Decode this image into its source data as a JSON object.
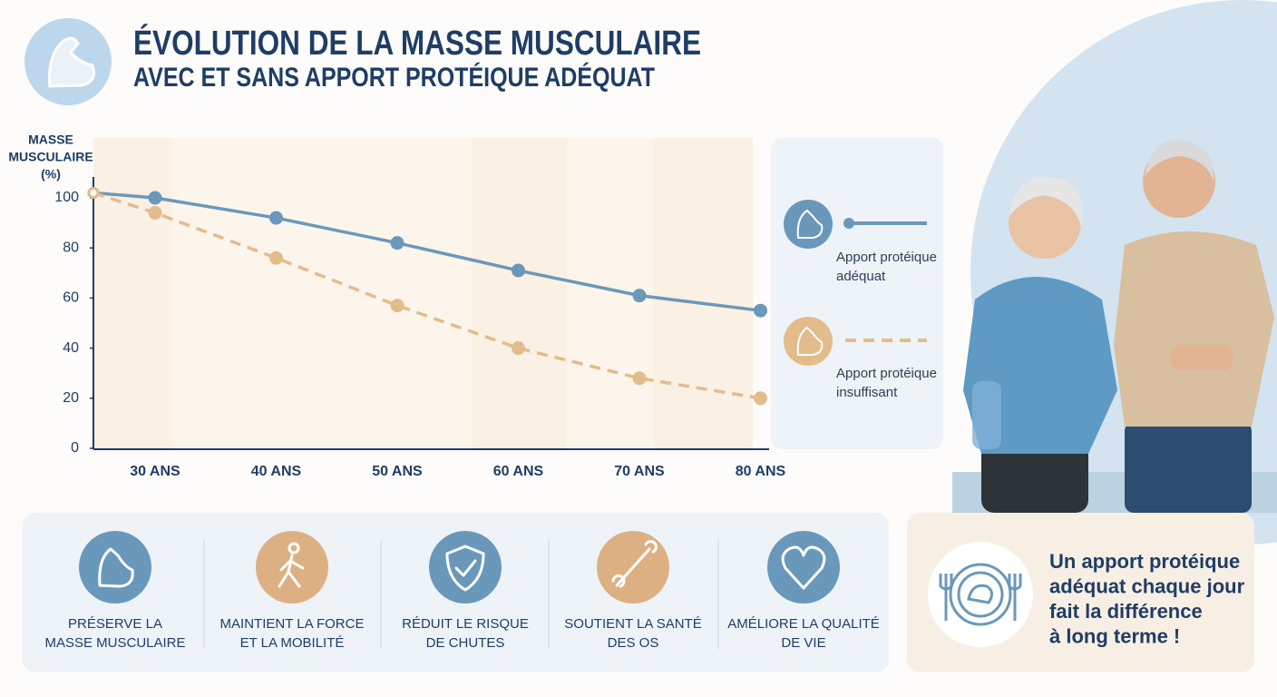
{
  "header": {
    "title": "ÉVOLUTION DE LA MASSE MUSCULAIRE",
    "subtitle": "AVEC ET SANS APPORT PROTÉIQUE ADÉQUAT"
  },
  "chart_data": {
    "type": "line",
    "y_label": [
      "MASSE",
      "MUSCULAIRE",
      "(%)"
    ],
    "categories": [
      null,
      "30 ANS",
      "40 ANS",
      "50 ANS",
      "60 ANS",
      "70 ANS",
      "80 ANS"
    ],
    "series": [
      {
        "name": "Apport protéique adéquat",
        "color": "#6a98bb",
        "style": "solid",
        "values": [
          102,
          100,
          92,
          82,
          71,
          61,
          55
        ]
      },
      {
        "name": "Apport protéique insuffisant",
        "color": "#e3bc8c",
        "style": "dashed",
        "values": [
          102,
          94,
          76,
          57,
          40,
          28,
          20
        ]
      }
    ],
    "ylim": [
      0,
      108
    ],
    "yticks": [
      0,
      20,
      40,
      60,
      80,
      100
    ]
  },
  "benefits": [
    {
      "lines": [
        "PRÉSERVE LA",
        "MASSE MUSCULAIRE"
      ]
    },
    {
      "lines": [
        "MAINTIENT LA FORCE",
        "ET LA MOBILITÉ"
      ]
    },
    {
      "lines": [
        "RÉDUIT LE RISQUE",
        "DE CHUTES"
      ]
    },
    {
      "lines": [
        "SOUTIENT LA SANTÉ",
        "DES OS"
      ]
    },
    {
      "lines": [
        "AMÉLIORE LA QUALITÉ",
        "DE VIE"
      ]
    }
  ],
  "callout": {
    "lines": [
      "Un apport protéique",
      "adéquat chaque jour",
      "fait la différence",
      "à long terme !"
    ]
  }
}
